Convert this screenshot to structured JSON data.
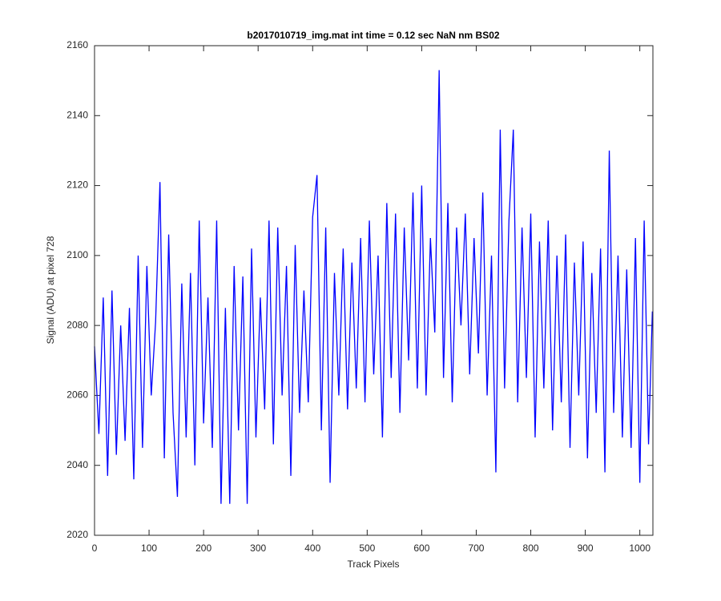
{
  "chart_data": {
    "type": "line",
    "title": "b2017010719_img.mat int time = 0.12 sec  NaN nm BS02",
    "x_label": "Track Pixels",
    "y_label": "Signal (ADU) at pixel 728",
    "x": [
      0,
      8,
      16,
      24,
      32,
      40,
      48,
      56,
      64,
      72,
      80,
      88,
      96,
      104,
      112,
      120,
      128,
      136,
      144,
      152,
      160,
      168,
      176,
      184,
      192,
      200,
      208,
      216,
      224,
      232,
      240,
      248,
      256,
      264,
      272,
      280,
      288,
      296,
      304,
      312,
      320,
      328,
      336,
      344,
      352,
      360,
      368,
      376,
      384,
      392,
      400,
      408,
      416,
      424,
      432,
      440,
      448,
      456,
      464,
      472,
      480,
      488,
      496,
      504,
      512,
      520,
      528,
      536,
      544,
      552,
      560,
      568,
      576,
      584,
      592,
      600,
      608,
      616,
      624,
      632,
      640,
      648,
      656,
      664,
      672,
      680,
      688,
      696,
      704,
      712,
      720,
      728,
      736,
      744,
      752,
      760,
      768,
      776,
      784,
      792,
      800,
      808,
      816,
      824,
      832,
      840,
      848,
      856,
      864,
      872,
      880,
      888,
      896,
      904,
      912,
      920,
      928,
      936,
      944,
      952,
      960,
      968,
      976,
      984,
      992,
      1000,
      1008,
      1016,
      1023
    ],
    "series": [
      {
        "color": "#0000ff",
        "values": [
          2074,
          2049,
          2088,
          2037,
          2090,
          2043,
          2080,
          2047,
          2085,
          2036,
          2100,
          2045,
          2097,
          2060,
          2081,
          2121,
          2042,
          2106,
          2055,
          2031,
          2092,
          2048,
          2095,
          2040,
          2110,
          2052,
          2088,
          2045,
          2110,
          2029,
          2085,
          2029,
          2097,
          2050,
          2094,
          2029,
          2102,
          2048,
          2088,
          2056,
          2110,
          2046,
          2108,
          2060,
          2097,
          2037,
          2103,
          2055,
          2090,
          2058,
          2111,
          2123,
          2050,
          2108,
          2035,
          2095,
          2060,
          2102,
          2056,
          2098,
          2062,
          2105,
          2058,
          2110,
          2066,
          2100,
          2048,
          2115,
          2065,
          2112,
          2055,
          2108,
          2070,
          2118,
          2062,
          2120,
          2060,
          2105,
          2078,
          2153,
          2065,
          2115,
          2058,
          2108,
          2080,
          2112,
          2066,
          2105,
          2072,
          2118,
          2060,
          2100,
          2038,
          2136,
          2062,
          2110,
          2136,
          2058,
          2108,
          2065,
          2112,
          2048,
          2104,
          2062,
          2110,
          2050,
          2100,
          2058,
          2106,
          2045,
          2098,
          2060,
          2104,
          2042,
          2095,
          2055,
          2102,
          2038,
          2130,
          2055,
          2100,
          2048,
          2096,
          2045,
          2105,
          2035,
          2110,
          2046,
          2084
        ]
      }
    ],
    "xlim": [
      0,
      1024
    ],
    "ylim": [
      2020,
      2160
    ],
    "xticks": [
      0,
      100,
      200,
      300,
      400,
      500,
      600,
      700,
      800,
      900,
      1000
    ],
    "yticks": [
      2020,
      2040,
      2060,
      2080,
      2100,
      2120,
      2140,
      2160
    ]
  }
}
